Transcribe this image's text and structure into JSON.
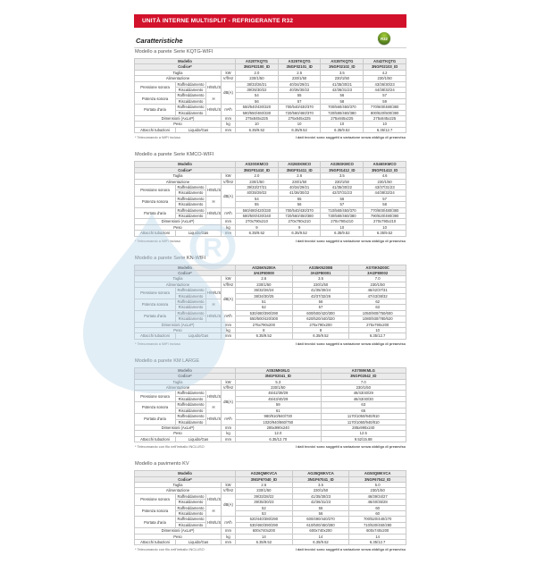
{
  "banner": {
    "title": "UNITÀ INTERNE MULTISPLIT - REFRIGERANTE R32"
  },
  "heading": "Caratteristiche",
  "badge": {
    "label": "R32",
    "color": "#4e7a1e"
  },
  "brand_red": "#d2112b",
  "watermark": {
    "symbol": "R"
  },
  "labels": {
    "modello": "Modello",
    "codice": "Codice*",
    "taglia": "Taglia",
    "alimentazione": "Alimentazione",
    "pressione": "Pressione sonora",
    "potenza": "Potenza sonora",
    "portata": "Portata d'aria",
    "dimensioni": "Dimensioni (AxLxP)",
    "peso": "Peso",
    "attacchi": "Attacchi tubazioni",
    "raffreddamento": "Raffreddamento",
    "riscaldamento": "Riscaldamento",
    "liquido_gas": "Liquido/Gas",
    "speed_multi": "H/M/L/SL",
    "speed_max": "H",
    "u_kw": "kW",
    "u_alim": "V/f/Hz",
    "u_dba": "dB(A)",
    "u_m3h": "m³/h",
    "u_mm": "mm",
    "u_kg": "kg"
  },
  "notes": {
    "wifi_included": "* Telecomando a WiFi incluso",
    "wired_included": "* Telecomando con filo nell'imballo INCLUSO",
    "specs_change": "I dati tecnici sono soggetti a variazione senza obbligo di preavviso"
  },
  "tables": [
    {
      "title": "Modello a parete Serie KQTG-WIFI",
      "wifi": true,
      "unit_image": "wall",
      "models": [
        "AS20TKQTG",
        "AS25TKQTG",
        "AS35TKQTG",
        "AS42TKQTG"
      ],
      "codes": [
        "3NGF02100_ID",
        "3NGF02101_ID",
        "3NGF02102_ID",
        "3NGF02103_ID"
      ],
      "taglia": [
        "2.0",
        "2.5",
        "3.5",
        "4.2"
      ],
      "alimentazione": [
        "230/1/50",
        "230/1/50",
        "230/1/50",
        "230/1/50"
      ],
      "pressione_raff": [
        "38/33/26/21",
        "40/34/29/21",
        "41/35/30/21",
        "43/36/30/23"
      ],
      "pressione_risc": [
        "39/35/30/22",
        "40/36/30/22",
        "42/36/31/23",
        "44/38/32/24"
      ],
      "potenza_raff": [
        "54",
        "55",
        "56",
        "57"
      ],
      "potenza_risc": [
        "56",
        "57",
        "58",
        "59"
      ],
      "portata_raff": [
        "550/540/430/320",
        "700/540/430/370",
        "700/560/450/370",
        "770/600/480/380"
      ],
      "portata_risc": [
        "580/550/460/330",
        "720/560/460/370",
        "720/580/460/380",
        "800/620/500/390"
      ],
      "dimensioni": [
        "275x845x225",
        "275x845x225",
        "275x845x225",
        "275x845x225"
      ],
      "peso": [
        "10",
        "10",
        "10",
        "10"
      ],
      "attacchi": [
        "6.35/9.52",
        "6.35/9.52",
        "6.35/9.52",
        "6.35/12.7"
      ],
      "footnote_left": "* Telecomando a WiFi incluso",
      "footnote_right": "I dati tecnici sono soggetti a variazione senza obbligo di preavviso"
    },
    {
      "title": "Modello a parete Serie KMCO-WIFI",
      "wifi": true,
      "unit_image": "wall",
      "models": [
        "AS20SKMCO",
        "AS26SKMCO",
        "AS35SKMCO",
        "AS46SKMCO"
      ],
      "codes": [
        "3NGF01410_ID",
        "3NGF01411_ID",
        "3NGF01412_ID",
        "3NGF01413_ID"
      ],
      "taglia": [
        "2.0",
        "2.6",
        "3.5",
        "4.6"
      ],
      "alimentazione": [
        "230/1/50",
        "230/1/50",
        "230/1/50",
        "230/1/50"
      ],
      "pressione_raff": [
        "39/33/27/21",
        "40/34/29/21",
        "41/35/30/22",
        "43/37/31/23"
      ],
      "pressione_risc": [
        "40/35/29/22",
        "41/36/30/22",
        "42/37/31/23",
        "44/38/32/24"
      ],
      "potenza_raff": [
        "54",
        "55",
        "56",
        "57"
      ],
      "potenza_risc": [
        "55",
        "56",
        "57",
        "58"
      ],
      "portata_raff": [
        "560/480/420/330",
        "700/540/430/370",
        "710/560/450/370",
        "770/600/480/380"
      ],
      "portata_risc": [
        "580/500/430/340",
        "720/560/450/380",
        "730/580/460/380",
        "790/620/490/390"
      ],
      "dimensioni": [
        "270x790x210",
        "270x790x210",
        "270x790x210",
        "270x790x210"
      ],
      "peso": [
        "9",
        "9",
        "10",
        "10"
      ],
      "attacchi": [
        "6.35/9.52",
        "6.35/9.52",
        "6.35/9.52",
        "6.35/9.52"
      ],
      "footnote_left": "* Telecomando a WiFi incluso",
      "footnote_right": "I dati tecnici sono soggetti a variazione senza obbligo di preavviso"
    },
    {
      "title": "Modello a parete Serie KN-WIFI",
      "wifi": true,
      "unit_image": "wall",
      "models": [
        "AS26KN200A",
        "AS35KN200B",
        "AS70KN200C"
      ],
      "codes": [
        "3AI2F80000",
        "3AI2F80001",
        "3AI2F80002"
      ],
      "taglia": [
        "2.6",
        "3.5",
        "7.0"
      ],
      "alimentazione": [
        "230/1/50",
        "230/1/50",
        "230/1/50"
      ],
      "pressione_raff": [
        "36/32/26/24",
        "41/35/30/24",
        "46/42/37/31"
      ],
      "pressione_risc": [
        "38/34/30/25",
        "43/37/32/26",
        "47/43/38/32"
      ],
      "potenza_raff": [
        "51",
        "56",
        "62"
      ],
      "potenza_risc": [
        "52",
        "57",
        "63"
      ],
      "portata_raff": [
        "530/480/390/290",
        "600/500/420/300",
        "1050/900/750/600"
      ],
      "portata_risc": [
        "550/500/420/300",
        "620/520/440/320",
        "1080/930/780/620"
      ],
      "dimensioni": [
        "275x790x200",
        "275x790x200",
        "275x790x200"
      ],
      "peso": [
        "8",
        "8",
        "10"
      ],
      "attacchi": [
        "6.35/9.52",
        "6.35/9.52",
        "6.35/12.7"
      ],
      "footnote_left": "* Telecomando a WiFi incluso",
      "footnote_right": "I dati tecnici sono soggetti a variazione senza obbligo di preavviso"
    },
    {
      "title": "Modello a parete KM LARGE",
      "wifi": false,
      "unit_image": "wall",
      "models": [
        "AS53MKMLG",
        "AS70MKMLG"
      ],
      "codes": [
        "3NGF02041_ID",
        "3NGF02042_ID"
      ],
      "taglia": [
        "5.3",
        "7.0"
      ],
      "alimentazione": [
        "230/1/50",
        "230/1/50"
      ],
      "pressione_raff": [
        "45/42/39/29",
        "46/43/40/29"
      ],
      "pressione_risc": [
        "45/43/40/29",
        "46/43/40/30"
      ],
      "potenza_raff": [
        "59",
        "63"
      ],
      "potenza_risc": [
        "61",
        "65"
      ],
      "portata_raff": [
        "980/910/840/730",
        "1170/1050/940/810"
      ],
      "portata_risc": [
        "1020/940/860/750",
        "1170/1060/940/810"
      ],
      "dimensioni": [
        "285x990x240",
        "285x990x240"
      ],
      "peso": [
        "12.0",
        "12.5"
      ],
      "attacchi": [
        "6.35/12.70",
        "9.52/15.88"
      ],
      "footnote_left": "* Telecomando con filo nell'imballo INCLUSO",
      "footnote_right": "I dati tecnici sono soggetti a variazione senza obbligo di preavviso"
    },
    {
      "title": "Modello a pavimento KV",
      "wifi": false,
      "unit_image": "floor",
      "models": [
        "AG26QMKVCA",
        "AG35QMKVCA",
        "AG50QMKVCA"
      ],
      "codes": [
        "3NGF67040_ID",
        "3NGF67041_ID",
        "3NGF67042_ID"
      ],
      "taglia": [
        "2.6",
        "3.5",
        "5.0"
      ],
      "alimentazione": [
        "230/1/50",
        "230/1/50",
        "230/1/50"
      ],
      "pressione_raff": [
        "39/33/28/22",
        "41/35/30/23",
        "46/39/34/27"
      ],
      "pressione_risc": [
        "39/35/30/23",
        "42/36/31/23",
        "46/40/35/28"
      ],
      "potenza_raff": [
        "52",
        "55",
        "60"
      ],
      "potenza_risc": [
        "53",
        "56",
        "60"
      ],
      "portata_raff": [
        "520/440/380/290",
        "600/490/440/270",
        "700/520/440/270"
      ],
      "portata_risc": [
        "530/460/390/290",
        "610/500/450/280",
        "710/530/450/280"
      ],
      "dimensioni": [
        "600x740x200",
        "600x740x200",
        "600x740x200"
      ],
      "peso": [
        "14",
        "14",
        "14"
      ],
      "attacchi": [
        "6.35/9.52",
        "6.35/9.52",
        "6.35/12.7"
      ],
      "footnote_left": "* Telecomando con filo nell'imballo INCLUSO",
      "footnote_right": "I dati tecnici sono soggetti a variazione senza obbligo di preavviso"
    }
  ]
}
